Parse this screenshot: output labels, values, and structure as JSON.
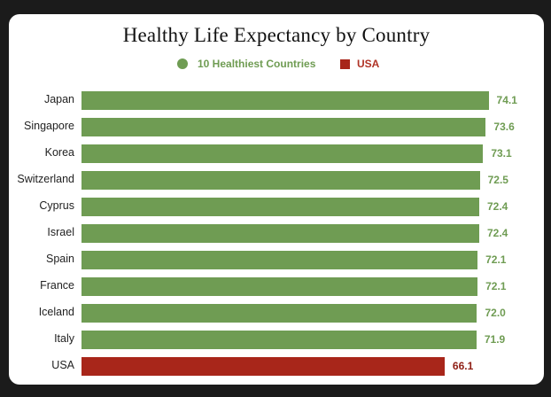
{
  "chart_data": {
    "type": "bar",
    "orientation": "horizontal",
    "title": "Healthy Life Expectancy by Country",
    "xlabel": "",
    "ylabel": "",
    "xlim": [
      0,
      74.5
    ],
    "legend": [
      {
        "label": "10 Healthiest Countries",
        "marker": "circle",
        "color": "#6f9c53"
      },
      {
        "label": "USA",
        "marker": "square",
        "color": "#a8261a"
      }
    ],
    "legend_position": "top-center",
    "grid": false,
    "categories": [
      "Japan",
      "Singapore",
      "Korea",
      "Switzerland",
      "Cyprus",
      "Israel",
      "Spain",
      "France",
      "Iceland",
      "Italy",
      "USA"
    ],
    "values": [
      74.1,
      73.6,
      73.1,
      72.5,
      72.4,
      72.4,
      72.1,
      72.1,
      72.0,
      71.9,
      66.1
    ],
    "value_labels": [
      "74.1",
      "73.6",
      "73.1",
      "72.5",
      "72.4",
      "72.4",
      "72.1",
      "72.1",
      "72.0",
      "71.9",
      "66.1"
    ],
    "groups": [
      "healthiest",
      "healthiest",
      "healthiest",
      "healthiest",
      "healthiest",
      "healthiest",
      "healthiest",
      "healthiest",
      "healthiest",
      "healthiest",
      "usa"
    ]
  },
  "colors": {
    "healthiest": "#6f9c53",
    "healthiest_label": "#6f9c53",
    "usa": "#a8261a",
    "usa_label": "#8f1e14",
    "legend_text_green": "#6f9c53",
    "legend_text_red": "#b03326"
  }
}
